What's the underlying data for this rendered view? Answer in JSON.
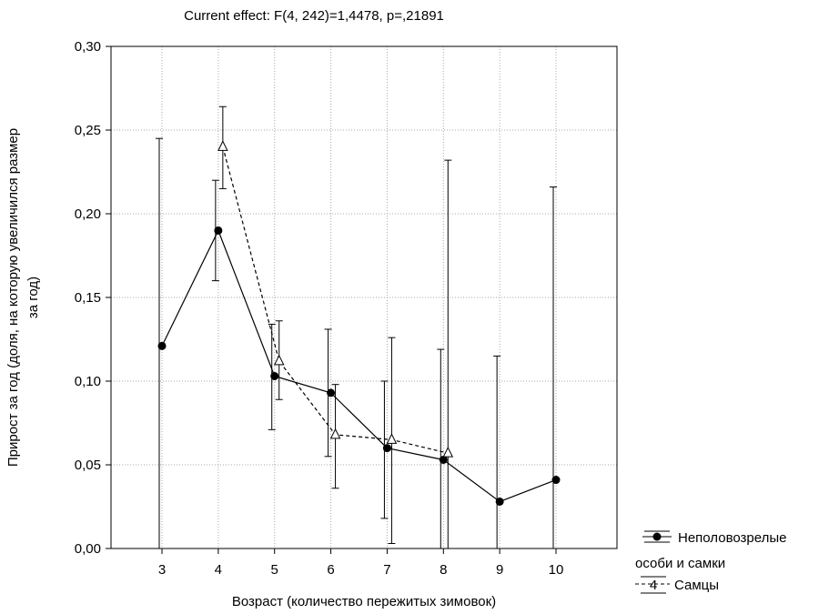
{
  "chart_data": {
    "type": "line",
    "title": "Current effect: F(4, 242)=1,4478, p=,21891",
    "xlabel": "Возраст (количество пережитых зимовок)",
    "ylabel_lines": [
      "Прирост за год (доля, на которую увеличился размер",
      "за год)"
    ],
    "categories": [
      "3",
      "4",
      "5",
      "6",
      "7",
      "8",
      "9",
      "10"
    ],
    "yticks": [
      "0,00",
      "0,05",
      "0,10",
      "0,15",
      "0,20",
      "0,25",
      "0,30"
    ],
    "ylim": [
      0,
      0.3
    ],
    "grid": true,
    "legend_position": "bottom-right",
    "series": [
      {
        "name_lines": [
          "Неполовозрелые",
          "особи и самки"
        ],
        "marker": "circle",
        "line_style": "solid",
        "color": "#000000",
        "x": [
          "3",
          "4",
          "5",
          "6",
          "7",
          "8",
          "9",
          "10"
        ],
        "values": [
          0.121,
          0.19,
          0.103,
          0.093,
          0.06,
          0.053,
          0.028,
          0.041
        ],
        "lower": [
          0.0,
          0.16,
          0.071,
          0.055,
          0.018,
          0.0,
          0.0,
          0.0
        ],
        "upper": [
          0.245,
          0.22,
          0.134,
          0.131,
          0.1,
          0.119,
          0.115,
          0.216
        ]
      },
      {
        "name_lines": [
          "Самцы"
        ],
        "marker": "triangle",
        "marker_label": "4",
        "line_style": "dashed",
        "color": "#000000",
        "x": [
          "4",
          "5",
          "6",
          "7",
          "8"
        ],
        "values": [
          0.24,
          0.112,
          0.068,
          0.065,
          0.057
        ],
        "lower": [
          0.215,
          0.089,
          0.036,
          0.003,
          0.0
        ],
        "upper": [
          0.264,
          0.136,
          0.098,
          0.126,
          0.232
        ]
      }
    ]
  }
}
